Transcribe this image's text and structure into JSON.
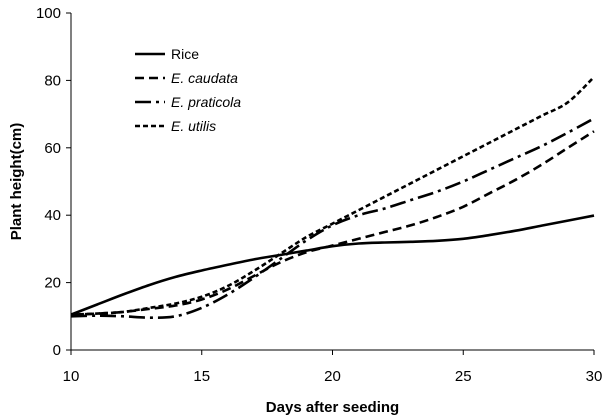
{
  "chart_data": {
    "type": "line",
    "title": "",
    "xlabel": "Days after seeding",
    "ylabel": "Plant height(cm)",
    "xlim": [
      10,
      30
    ],
    "ylim": [
      0,
      100
    ],
    "xticks": [
      10,
      15,
      20,
      25,
      30
    ],
    "yticks": [
      0,
      20,
      40,
      60,
      80,
      100
    ],
    "grid": false,
    "legend_position": "top-left",
    "series": [
      {
        "name": "Rice",
        "style": "solid",
        "italic": false,
        "x": [
          10,
          11,
          12,
          13,
          14,
          15,
          16,
          17,
          18,
          19,
          20,
          21,
          22,
          23,
          24,
          25,
          26,
          27,
          28,
          29,
          30
        ],
        "y": [
          10.5,
          13.5,
          16.5,
          19.3,
          21.7,
          23.6,
          25.3,
          26.9,
          28.2,
          29.5,
          30.8,
          31.6,
          31.9,
          32.1,
          32.4,
          33.0,
          34.1,
          35.4,
          36.9,
          38.4,
          39.9
        ]
      },
      {
        "name": "E. caudata",
        "style": "dashed",
        "italic": true,
        "x": [
          10,
          11,
          12,
          13,
          14,
          15,
          16,
          17,
          18,
          19,
          20,
          21,
          22,
          23,
          24,
          25,
          26,
          27,
          28,
          29,
          30
        ],
        "y": [
          10.5,
          10.8,
          11.3,
          12.2,
          13.2,
          15.0,
          18.0,
          22.0,
          26.0,
          29.0,
          31.0,
          33.0,
          35.0,
          37.0,
          39.5,
          42.5,
          46.5,
          50.5,
          55.0,
          60.0,
          64.9
        ]
      },
      {
        "name": "E. praticola",
        "style": "dash-dot",
        "italic": true,
        "x": [
          10,
          11,
          12,
          13,
          14,
          15,
          16,
          17,
          18,
          19,
          20,
          21,
          22,
          23,
          24,
          25,
          26,
          27,
          28,
          29,
          30
        ],
        "y": [
          10.0,
          10.2,
          10.0,
          9.6,
          10.0,
          12.5,
          16.5,
          21.5,
          27.0,
          32.5,
          37.0,
          40.0,
          42.0,
          44.5,
          47.0,
          50.0,
          53.5,
          57.0,
          60.5,
          64.5,
          68.7
        ]
      },
      {
        "name": "E. utilis",
        "style": "dotted",
        "italic": true,
        "x": [
          10,
          11,
          12,
          13,
          14,
          15,
          16,
          17,
          18,
          19,
          20,
          21,
          22,
          23,
          24,
          25,
          26,
          27,
          28,
          29,
          30
        ],
        "y": [
          10.5,
          10.8,
          11.3,
          12.5,
          13.8,
          15.8,
          19.0,
          23.5,
          28.5,
          33.5,
          37.5,
          41.5,
          45.5,
          49.5,
          53.5,
          57.5,
          61.5,
          65.5,
          69.5,
          73.5,
          81.0
        ]
      }
    ]
  }
}
